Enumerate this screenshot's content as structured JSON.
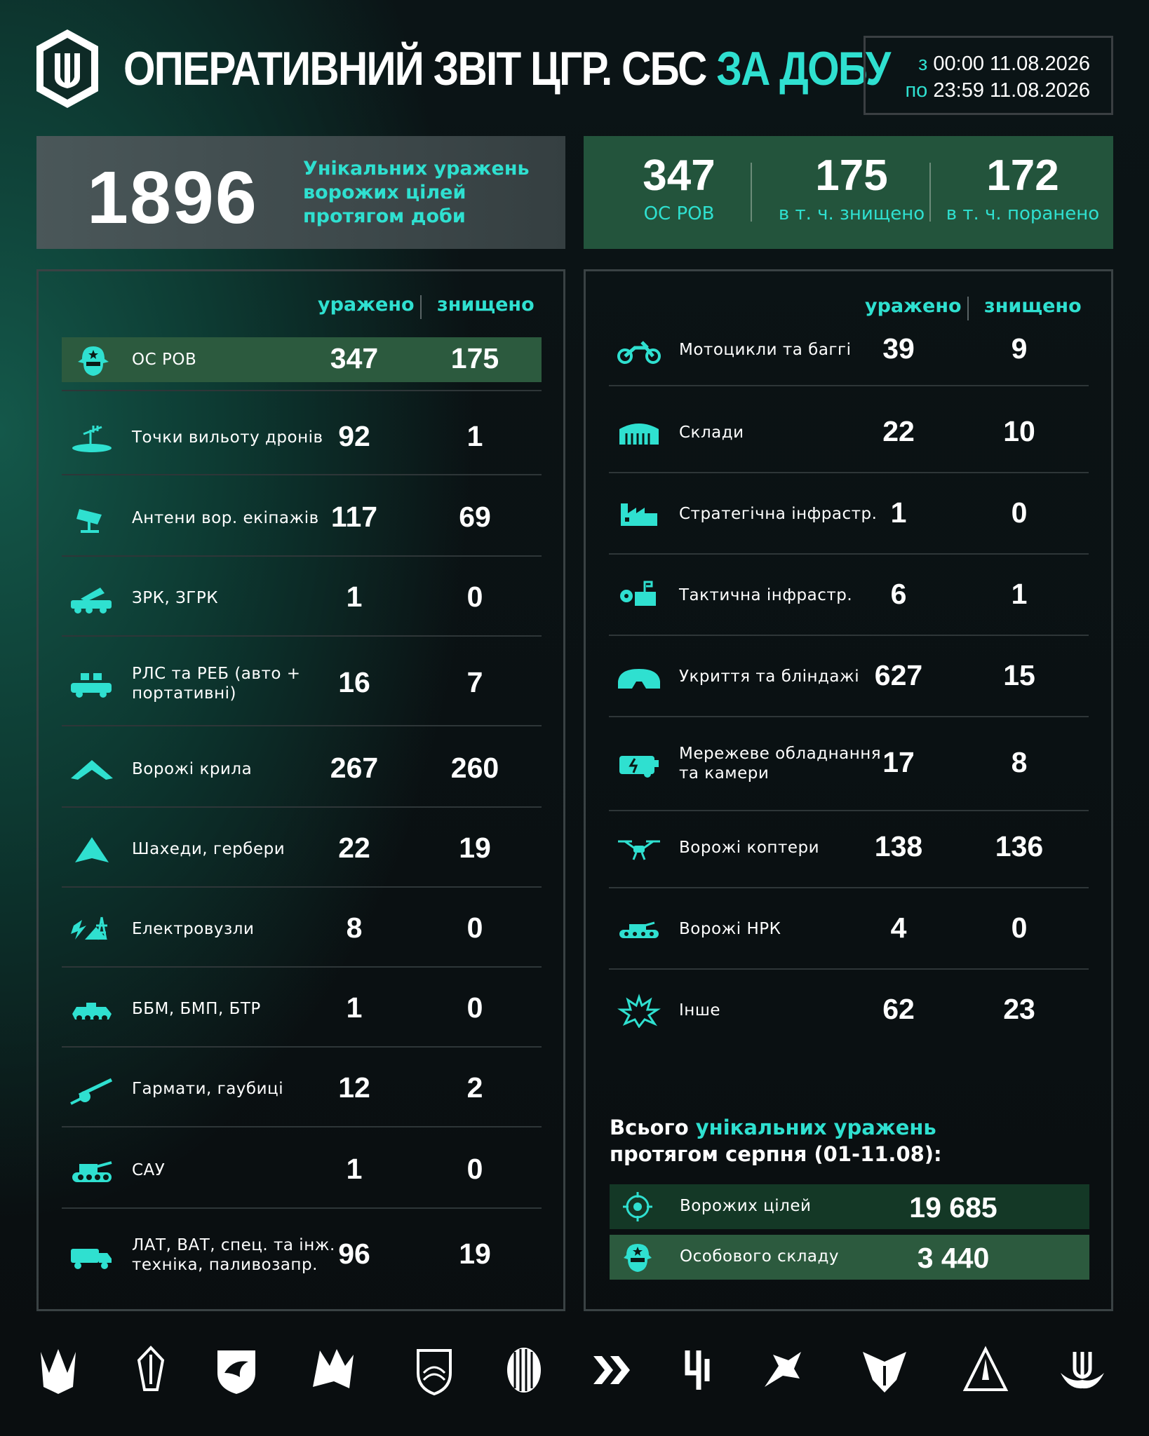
{
  "header": {
    "title_main": "ОПЕРАТИВНИЙ ЗВІТ ЦГР. СБС",
    "title_accent": "ЗА ДОБУ",
    "from_prefix": "з",
    "from_value": "00:00 11.08.2026",
    "to_prefix": "по",
    "to_value": "23:59 11.08.2026"
  },
  "summary_top": {
    "unique_hits": "1896",
    "unique_hits_text": "Унікальних уражень ворожих цілей протягом доби",
    "stats": [
      {
        "value": "347",
        "label": "ОС РОВ"
      },
      {
        "value": "175",
        "label": "в т. ч. знищено"
      },
      {
        "value": "172",
        "label": "в т. ч. поранено"
      }
    ]
  },
  "columns": {
    "hit": "уражено",
    "destroyed": "знищено"
  },
  "left_rows": [
    {
      "label": "ОС РОВ",
      "hit": "347",
      "destroyed": "175",
      "icon": "soldier-icon"
    },
    {
      "label": "Точки вильоту дронів",
      "hit": "92",
      "destroyed": "1",
      "icon": "drone-launch-point-icon"
    },
    {
      "label": "Антени вор. екіпажів",
      "hit": "117",
      "destroyed": "69",
      "icon": "antenna-icon"
    },
    {
      "label": "ЗРК, ЗГРК",
      "hit": "1",
      "destroyed": "0",
      "icon": "sam-system-icon"
    },
    {
      "label": "РЛС та РЕБ (авто + портативні)",
      "hit": "16",
      "destroyed": "7",
      "icon": "radar-ew-icon"
    },
    {
      "label": "Ворожі крила",
      "hit": "267",
      "destroyed": "260",
      "icon": "wing-icon"
    },
    {
      "label": "Шахеди, гербери",
      "hit": "22",
      "destroyed": "19",
      "icon": "shahed-icon"
    },
    {
      "label": "Електровузли",
      "hit": "8",
      "destroyed": "0",
      "icon": "power-node-icon"
    },
    {
      "label": "ББМ, БМП, БТР",
      "hit": "1",
      "destroyed": "0",
      "icon": "apc-icon"
    },
    {
      "label": "Гармати, гаубиці",
      "hit": "12",
      "destroyed": "2",
      "icon": "howitzer-icon"
    },
    {
      "label": "САУ",
      "hit": "1",
      "destroyed": "0",
      "icon": "spg-icon"
    },
    {
      "label": "ЛАТ, ВАТ, спец. та інж. техніка, паливозапр.",
      "hit": "96",
      "destroyed": "19",
      "icon": "truck-icon"
    }
  ],
  "right_rows": [
    {
      "label": "Мотоцикли та баггі",
      "hit": "39",
      "destroyed": "9",
      "icon": "motorcycle-icon"
    },
    {
      "label": "Склади",
      "hit": "22",
      "destroyed": "10",
      "icon": "warehouse-icon"
    },
    {
      "label": "Стратегічна інфрастр.",
      "hit": "1",
      "destroyed": "0",
      "icon": "factory-icon"
    },
    {
      "label": "Тактична інфрастр.",
      "hit": "6",
      "destroyed": "1",
      "icon": "tactical-infra-icon"
    },
    {
      "label": "Укриття та бліндажі",
      "hit": "627",
      "destroyed": "15",
      "icon": "bunker-icon"
    },
    {
      "label": "Мережеве обладнання та камери",
      "hit": "17",
      "destroyed": "8",
      "icon": "network-equipment-icon"
    },
    {
      "label": "Ворожі коптери",
      "hit": "138",
      "destroyed": "136",
      "icon": "copter-icon"
    },
    {
      "label": "Ворожі НРК",
      "hit": "4",
      "destroyed": "0",
      "icon": "ugv-icon"
    },
    {
      "label": "Інше",
      "hit": "62",
      "destroyed": "23",
      "icon": "explosion-icon"
    }
  ],
  "monthly": {
    "prefix": "Всього",
    "accent": "унікальних уражень",
    "suffix": "протягом серпня (01-11.08):",
    "rows": [
      {
        "label": "Ворожих цілей",
        "value": "19 685",
        "icon": "target-icon"
      },
      {
        "label": "Особового складу",
        "value": "3 440",
        "icon": "soldier-icon"
      }
    ]
  },
  "footer_icons": [
    "trident-unit-icon",
    "sword-emblem-icon",
    "eagle-shield-icon",
    "wolf-emblem-icon",
    "badge-shield-icon",
    "striped-head-icon",
    "chevron-arrows-icon",
    "rune-icon",
    "eagle-head-icon",
    "falcon-emblem-icon",
    "triangle-rocket-icon",
    "trident-wings-icon"
  ],
  "colors": {
    "accent": "#2fe0d0",
    "highlight_row": "#2c5a3e",
    "stats_box": "#23543c"
  }
}
